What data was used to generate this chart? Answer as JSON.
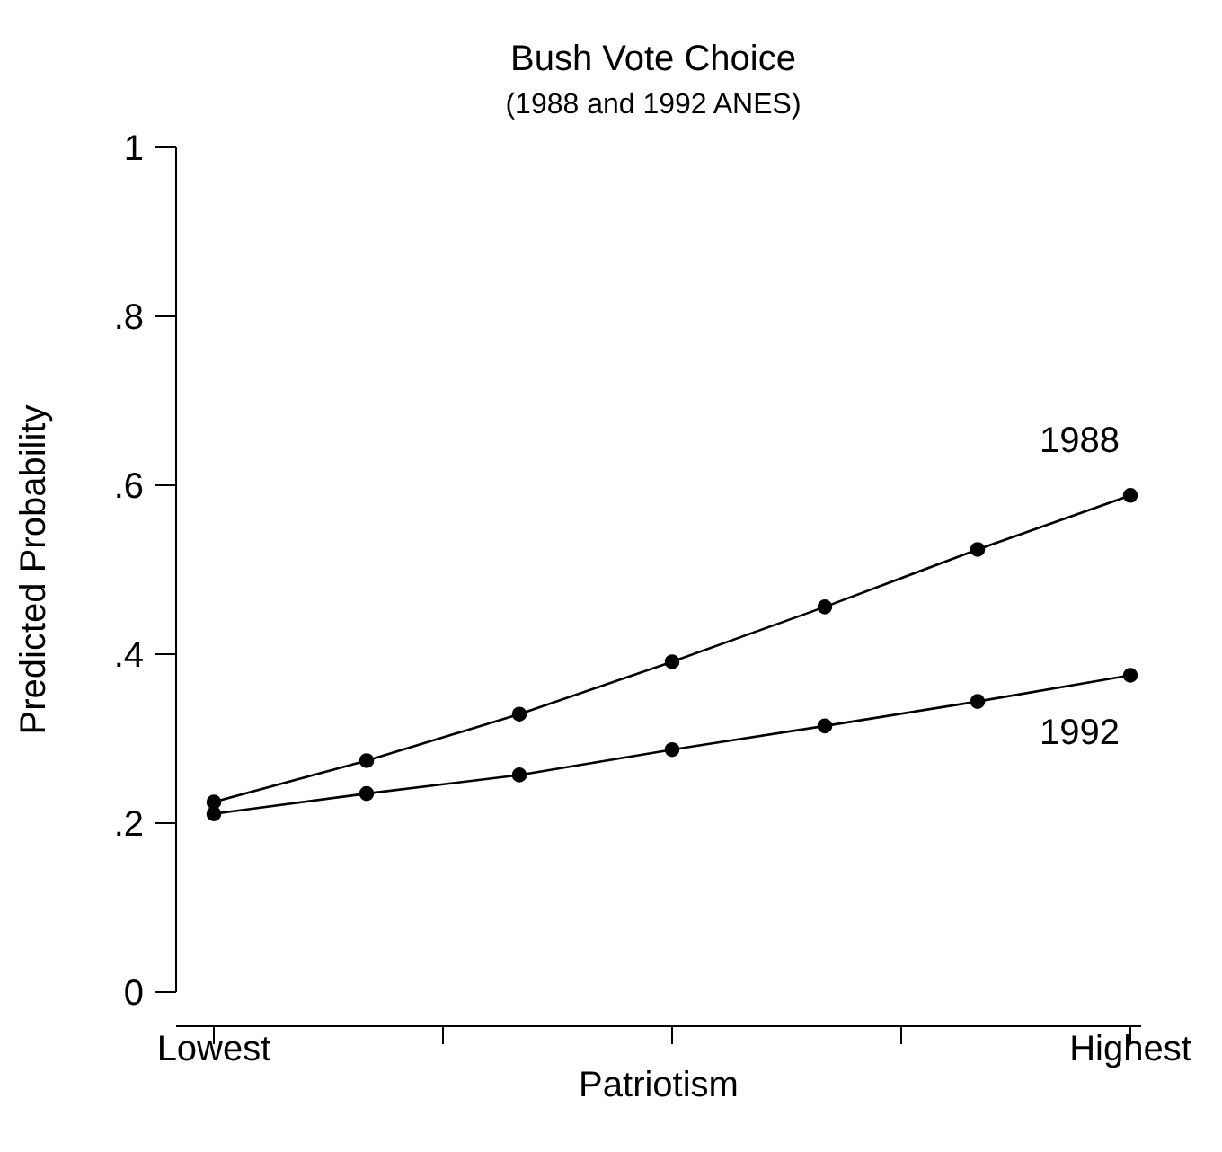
{
  "chart_data": {
    "type": "line",
    "title": "Bush Vote Choice",
    "subtitle": "(1988 and 1992 ANES)",
    "xlabel": "Patriotism",
    "ylabel": "Predicted Probability",
    "categories": [
      "Lowest",
      null,
      null,
      null,
      null,
      null,
      "Highest"
    ],
    "series": [
      {
        "name": "1988",
        "color": "#000000",
        "values": [
          0.225,
          0.274,
          0.329,
          0.391,
          0.456,
          0.524,
          0.588
        ]
      },
      {
        "name": "1992",
        "color": "#000000",
        "values": [
          0.211,
          0.235,
          0.257,
          0.287,
          0.315,
          0.344,
          0.375
        ]
      }
    ],
    "ylim": [
      0,
      1
    ],
    "yticks": [
      0,
      {
        "value": 0.2,
        "label": ".2"
      },
      {
        "value": 0.4,
        "label": ".4"
      },
      {
        "value": 0.6,
        "label": ".6"
      },
      {
        "value": 0.8,
        "label": ".8"
      },
      1
    ],
    "grid": false,
    "legend": false,
    "marker": "circle",
    "line_style": "solid"
  }
}
